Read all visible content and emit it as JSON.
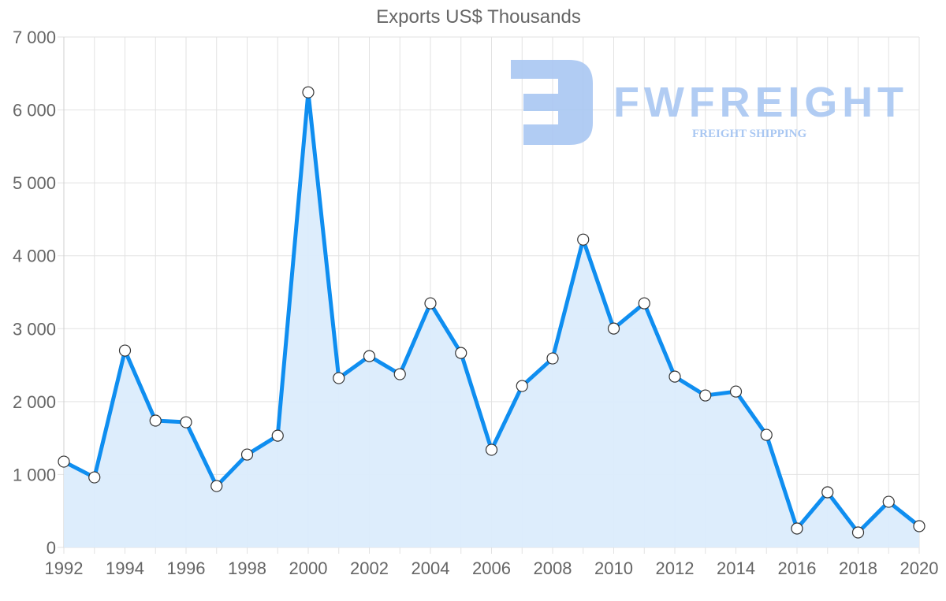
{
  "chart_data": {
    "type": "line",
    "title": "Exports US$ Thousands",
    "xlabel": "",
    "ylabel": "",
    "x": [
      1992,
      1993,
      1994,
      1995,
      1996,
      1997,
      1998,
      1999,
      2000,
      2001,
      2002,
      2003,
      2004,
      2005,
      2006,
      2007,
      2008,
      2009,
      2010,
      2011,
      2012,
      2013,
      2014,
      2015,
      2016,
      2017,
      2018,
      2019,
      2020
    ],
    "series": [
      {
        "name": "Exports US$ Thousands",
        "values": [
          1177,
          961,
          2700,
          1739,
          1717,
          842,
          1274,
          1533,
          6242,
          2322,
          2624,
          2376,
          3348,
          2667,
          1339,
          2214,
          2592,
          4222,
          3002,
          3348,
          2343,
          2084,
          2138,
          1544,
          259,
          756,
          205,
          626,
          292
        ],
        "line_color": "#0f8ef0",
        "fill_color": "#dbecfc"
      }
    ],
    "ylim": [
      0,
      7000
    ],
    "yticks": [
      "0",
      "1 000",
      "2 000",
      "3 000",
      "4 000",
      "5 000",
      "6 000",
      "7 000"
    ],
    "xticks": [
      "1992",
      "1994",
      "1996",
      "1998",
      "2000",
      "2002",
      "2004",
      "2006",
      "2008",
      "2010",
      "2012",
      "2014",
      "2016",
      "2018",
      "2020"
    ],
    "grid": true,
    "legend": "none",
    "fill": true
  },
  "watermark": {
    "brand": "FWFREIGHT",
    "tagline": "FREIGHT SHIPPING",
    "color": "#a9c7f2"
  }
}
